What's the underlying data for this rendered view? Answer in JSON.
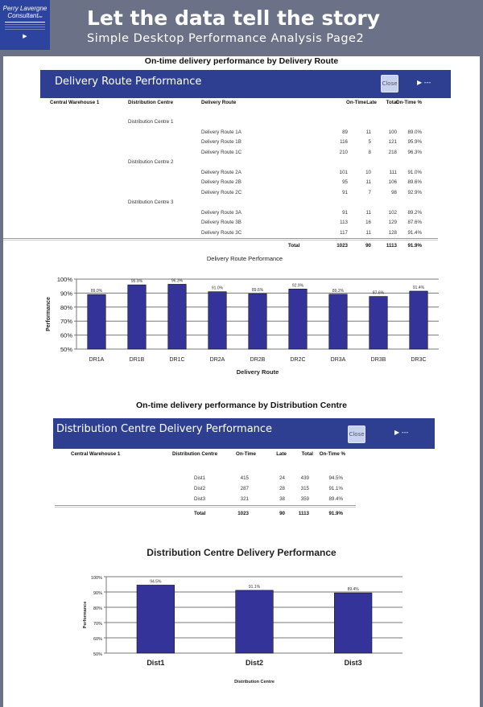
{
  "header": {
    "logo_line1": "Perry Lavergne",
    "logo_line2": "Consultant",
    "logo_suffix": "inc",
    "title": "Let the data tell the story",
    "subtitle": "Simple Desktop Performance Analysis Page2"
  },
  "route_section": {
    "heading": "On-time delivery performance by Delivery Route",
    "band_title": "Delivery Route Performance",
    "close_label": "Close",
    "columns": [
      "Central Warehouse 1",
      "Distribution Centre",
      "Delivery Route",
      "On-Time",
      "Late",
      "Total",
      "On-Time %"
    ],
    "groups": [
      {
        "name": "Distribution Centre 1",
        "rows": [
          [
            "Delivery Route 1A",
            "89",
            "11",
            "100",
            "89.0%"
          ],
          [
            "Delivery Route 1B",
            "116",
            "5",
            "121",
            "95.9%"
          ],
          [
            "Delivery Route 1C",
            "210",
            "8",
            "218",
            "96.3%"
          ]
        ]
      },
      {
        "name": "Distribution Centre 2",
        "rows": [
          [
            "Delivery Route 2A",
            "101",
            "10",
            "111",
            "91.0%"
          ],
          [
            "Delivery Route 2B",
            "95",
            "11",
            "106",
            "89.6%"
          ],
          [
            "Delivery Route 2C",
            "91",
            "7",
            "98",
            "92.9%"
          ]
        ]
      },
      {
        "name": "Distribution Centre 3",
        "rows": [
          [
            "Delivery Route 3A",
            "91",
            "11",
            "102",
            "89.2%"
          ],
          [
            "Delivery Route 3B",
            "113",
            "16",
            "129",
            "87.6%"
          ],
          [
            "Delivery Route 3C",
            "117",
            "11",
            "128",
            "91.4%"
          ]
        ]
      }
    ],
    "total": [
      "Total",
      "1023",
      "90",
      "1113",
      "91.9%"
    ]
  },
  "centre_section": {
    "heading": "On-time delivery performance by Distribution Centre",
    "band_title": "Distribution Centre Delivery Performance",
    "close_label": "Close",
    "columns": [
      "Central Warehouse 1",
      "Distribution Centre",
      "On-Time",
      "Late",
      "Total",
      "On-Time %"
    ],
    "rows": [
      [
        "Dist1",
        "415",
        "24",
        "439",
        "94.5%"
      ],
      [
        "Dist2",
        "287",
        "28",
        "315",
        "91.1%"
      ],
      [
        "Dist3",
        "321",
        "38",
        "359",
        "89.4%"
      ]
    ],
    "total": [
      "Total",
      "1023",
      "90",
      "1113",
      "91.9%"
    ]
  },
  "chart_data": [
    {
      "type": "bar",
      "title": "Delivery Route Performance",
      "xlabel": "Delivery Route",
      "ylabel": "Performance",
      "ylim": [
        50,
        100
      ],
      "yticks": [
        "50%",
        "60%",
        "70%",
        "80%",
        "90%",
        "100%"
      ],
      "grid": true,
      "color": "#333399",
      "categories": [
        "DR1A",
        "DR1B",
        "DR1C",
        "DR2A",
        "DR2B",
        "DR2C",
        "DR3A",
        "DR3B",
        "DR3C"
      ],
      "values": [
        89.0,
        95.9,
        96.3,
        91.0,
        89.6,
        92.9,
        89.2,
        87.6,
        91.4
      ],
      "labels": [
        "89.0%",
        "95.9%",
        "96.3%",
        "91.0%",
        "89.6%",
        "92.9%",
        "89.2%",
        "87.6%",
        "91.4%"
      ]
    },
    {
      "type": "bar",
      "title": "Distribution Centre Delivery Performance",
      "xlabel": "Distribution Centre",
      "ylabel": "Performance",
      "ylim": [
        50,
        100
      ],
      "yticks": [
        "50%",
        "60%",
        "70%",
        "80%",
        "90%",
        "100%"
      ],
      "grid": true,
      "color": "#333399",
      "categories": [
        "Dist1",
        "Dist2",
        "Dist3"
      ],
      "values": [
        94.5,
        91.1,
        89.4
      ],
      "labels": [
        "94.5%",
        "91.1%",
        "89.4%"
      ]
    }
  ]
}
